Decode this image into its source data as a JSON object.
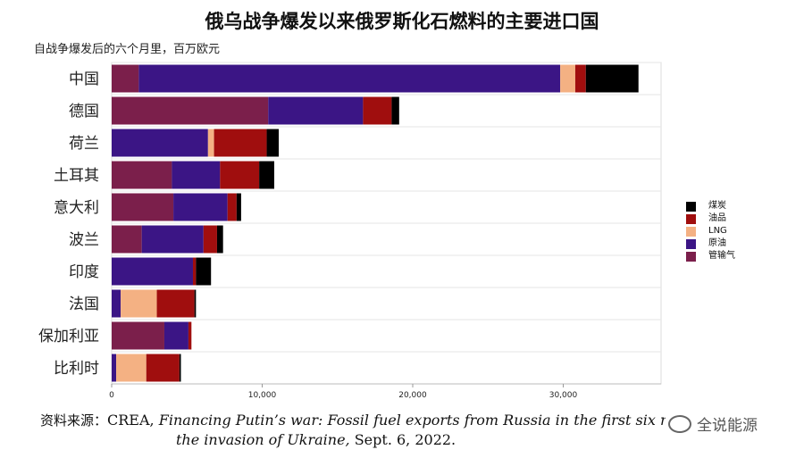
{
  "chart_data": {
    "type": "bar",
    "orientation": "horizontal",
    "stacked": true,
    "title": "俄乌战争爆发以来俄罗斯化石燃料的主要进口国",
    "subtitle": "自战争爆发后的六个月里，百万欧元",
    "categories": [
      "中国",
      "德国",
      "荷兰",
      "土耳其",
      "意大利",
      "波兰",
      "印度",
      "法国",
      "保加利亚",
      "比利时"
    ],
    "series": [
      {
        "name": "管输气",
        "color": "#7b1f4b",
        "values": [
          1800,
          10400,
          0,
          4000,
          4100,
          2000,
          0,
          0,
          3500,
          0
        ]
      },
      {
        "name": "原油",
        "color": "#3b1585",
        "values": [
          28000,
          6300,
          6400,
          3200,
          3600,
          4100,
          5400,
          600,
          1600,
          300
        ]
      },
      {
        "name": "LNG",
        "color": "#f4b183",
        "values": [
          1000,
          0,
          400,
          0,
          0,
          0,
          0,
          2400,
          0,
          2000
        ]
      },
      {
        "name": "油品",
        "color": "#a00e0e",
        "values": [
          700,
          1900,
          3500,
          2600,
          600,
          900,
          200,
          2500,
          200,
          2200
        ]
      },
      {
        "name": "煤炭",
        "color": "#000000",
        "values": [
          3500,
          500,
          800,
          1000,
          300,
          400,
          1000,
          100,
          0,
          100
        ]
      }
    ],
    "xlim": [
      0,
      36500
    ],
    "xticks": [
      0,
      10000,
      20000,
      30000
    ],
    "xtick_labels": [
      "0",
      "10,000",
      "20,000",
      "30,000"
    ],
    "grid": true,
    "legend_position": "right",
    "legend_order": [
      "煤炭",
      "油品",
      "LNG",
      "原油",
      "管输气"
    ]
  },
  "source": {
    "label": "资料来源：",
    "prefix": "CREA, ",
    "title_italic_1": "Financing Putin’s war: Fossil fuel exports from Russia in the first six month",
    "title_italic_2": "the invasion of Ukraine,",
    "date": " Sept. 6, 2022."
  },
  "watermark": "全说能源"
}
